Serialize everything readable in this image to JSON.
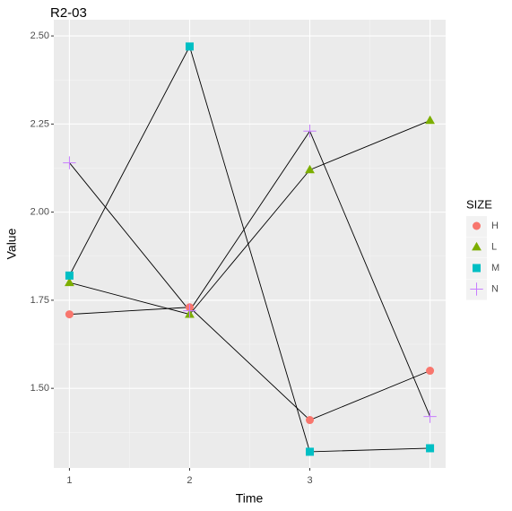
{
  "chart_data": {
    "type": "line",
    "title": "R2-03",
    "x_label": "Time",
    "y_label": "Value",
    "x": [
      1,
      2,
      3,
      4
    ],
    "xlim": [
      0.87,
      4.13
    ],
    "xticks": [
      1,
      2,
      3
    ],
    "ylim": [
      1.274,
      2.546
    ],
    "yticks": [
      {
        "value": 1.5,
        "label": "1.50"
      },
      {
        "value": 1.75,
        "label": "1.75"
      },
      {
        "value": 2.0,
        "label": "2.00"
      },
      {
        "value": 2.25,
        "label": "2.25"
      },
      {
        "value": 2.5,
        "label": "2.50"
      }
    ],
    "grid": true,
    "line_color": "#000000",
    "legend_title": "SIZE",
    "legend_position": "right",
    "series": [
      {
        "name": "H",
        "color": "#F8766D",
        "shape": "circle",
        "values": [
          1.71,
          1.73,
          1.41,
          1.55
        ]
      },
      {
        "name": "L",
        "color": "#7CAE00",
        "shape": "triangle",
        "values": [
          1.8,
          1.71,
          2.12,
          2.26
        ]
      },
      {
        "name": "M",
        "color": "#00BFC4",
        "shape": "square",
        "values": [
          1.82,
          2.47,
          1.32,
          1.33
        ]
      },
      {
        "name": "N",
        "color": "#C77CFF",
        "shape": "plus",
        "values": [
          2.14,
          1.72,
          2.23,
          1.42
        ]
      }
    ]
  }
}
